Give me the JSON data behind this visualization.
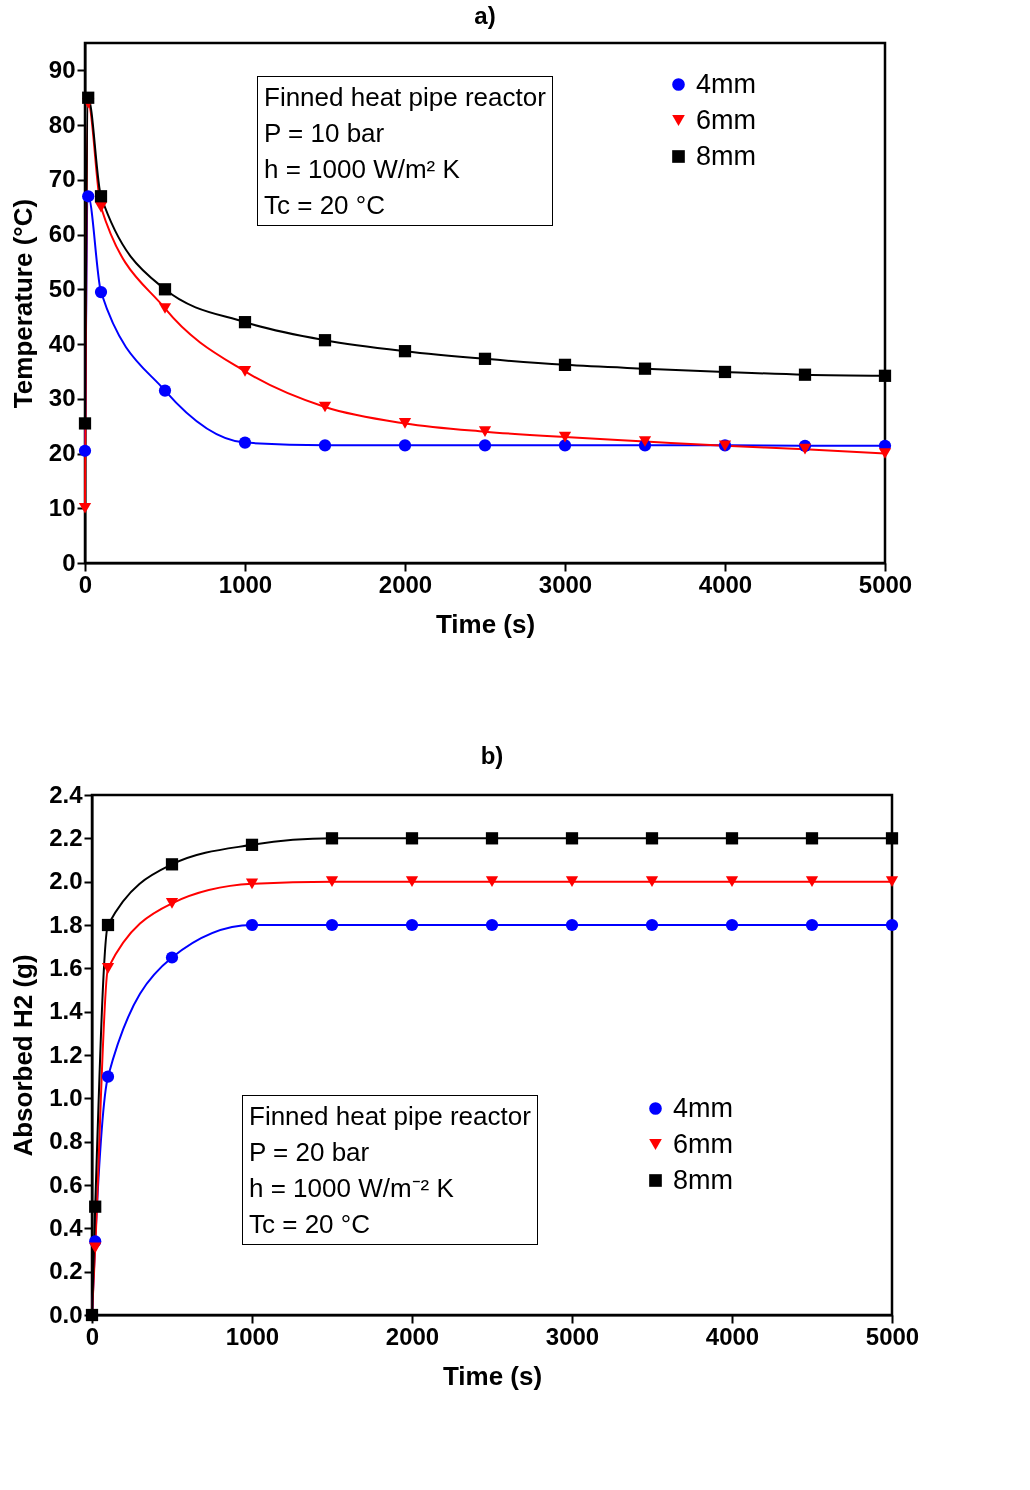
{
  "chart_data": [
    {
      "type": "line",
      "title": "a)",
      "xlabel": "Time (s)",
      "ylabel": "Temperature (°C)",
      "xlim": [
        0,
        5000
      ],
      "xticks": [
        0,
        1000,
        2000,
        3000,
        4000,
        5000
      ],
      "ylim": [
        0,
        95
      ],
      "yticks": [
        0,
        10,
        20,
        30,
        40,
        50,
        60,
        70,
        80,
        90
      ],
      "grid": false,
      "legend": "top right",
      "annotations": [
        "Finned heat pipe reactor",
        "P = 10 bar",
        "h = 1000 W/m² K",
        "Tc = 20 °C"
      ],
      "series": [
        {
          "name": "4mm",
          "color": "#0000ff",
          "marker": "circle",
          "x": [
            0,
            20,
            100,
            500,
            1000,
            1500,
            2000,
            2500,
            3000,
            3500,
            4000,
            4500,
            5000
          ],
          "values": [
            20.5,
            67,
            49.5,
            31.5,
            22,
            21.5,
            21.5,
            21.5,
            21.5,
            21.5,
            21.5,
            21.4,
            21.4
          ]
        },
        {
          "name": "6mm",
          "color": "#ff0000",
          "marker": "triangle",
          "x": [
            0,
            20,
            100,
            500,
            1000,
            1500,
            2000,
            2500,
            3000,
            3500,
            4000,
            4500,
            5000
          ],
          "values": [
            10,
            84,
            65,
            46.5,
            35,
            28.5,
            25.5,
            24,
            23,
            22.2,
            21.4,
            20.8,
            20
          ]
        },
        {
          "name": "8mm",
          "color": "#000000",
          "marker": "square",
          "x": [
            0,
            20,
            100,
            500,
            1000,
            1500,
            2000,
            2500,
            3000,
            3500,
            4000,
            4500,
            5000
          ],
          "values": [
            25.5,
            85,
            67,
            50,
            44,
            40.7,
            38.7,
            37.3,
            36.2,
            35.5,
            34.9,
            34.4,
            34.2
          ]
        }
      ]
    },
    {
      "type": "line",
      "title": "b)",
      "xlabel": "Time (s)",
      "ylabel": "Absorbed H2 (g)",
      "xlim": [
        0,
        5000
      ],
      "xticks": [
        0,
        1000,
        2000,
        3000,
        4000,
        5000
      ],
      "ylim": [
        0,
        2.4
      ],
      "yticks": [
        {
          "value": 0,
          "label": "0.0"
        },
        0.2,
        0.4,
        0.6,
        0.8,
        {
          "value": 1,
          "label": "1.0"
        },
        1.2,
        1.4,
        1.6,
        1.8,
        {
          "value": 2,
          "label": "2.0"
        },
        2.2,
        2.4
      ],
      "grid": false,
      "legend": "right",
      "annotations": [
        "Finned heat pipe reactor",
        "P = 20 bar",
        "h = 1000 W/m⁻² K",
        "Tc = 20 °C"
      ],
      "series": [
        {
          "name": "4mm",
          "color": "#0000ff",
          "marker": "circle",
          "x": [
            0,
            20,
            100,
            500,
            1000,
            1500,
            2000,
            2500,
            3000,
            3500,
            4000,
            4500,
            5000
          ],
          "values": [
            0,
            0.34,
            1.1,
            1.65,
            1.8,
            1.8,
            1.8,
            1.8,
            1.8,
            1.8,
            1.8,
            1.8,
            1.8
          ]
        },
        {
          "name": "6mm",
          "color": "#ff0000",
          "marker": "triangle",
          "x": [
            0,
            20,
            100,
            500,
            1000,
            1500,
            2000,
            2500,
            3000,
            3500,
            4000,
            4500,
            5000
          ],
          "values": [
            0,
            0.31,
            1.6,
            1.9,
            1.99,
            2,
            2,
            2,
            2,
            2,
            2,
            2,
            2
          ]
        },
        {
          "name": "8mm",
          "color": "#000000",
          "marker": "square",
          "x": [
            0,
            20,
            100,
            500,
            1000,
            1500,
            2000,
            2500,
            3000,
            3500,
            4000,
            4500,
            5000
          ],
          "values": [
            0,
            0.5,
            1.8,
            2.08,
            2.17,
            2.2,
            2.2,
            2.2,
            2.2,
            2.2,
            2.2,
            2.2,
            2.2
          ]
        }
      ]
    }
  ]
}
